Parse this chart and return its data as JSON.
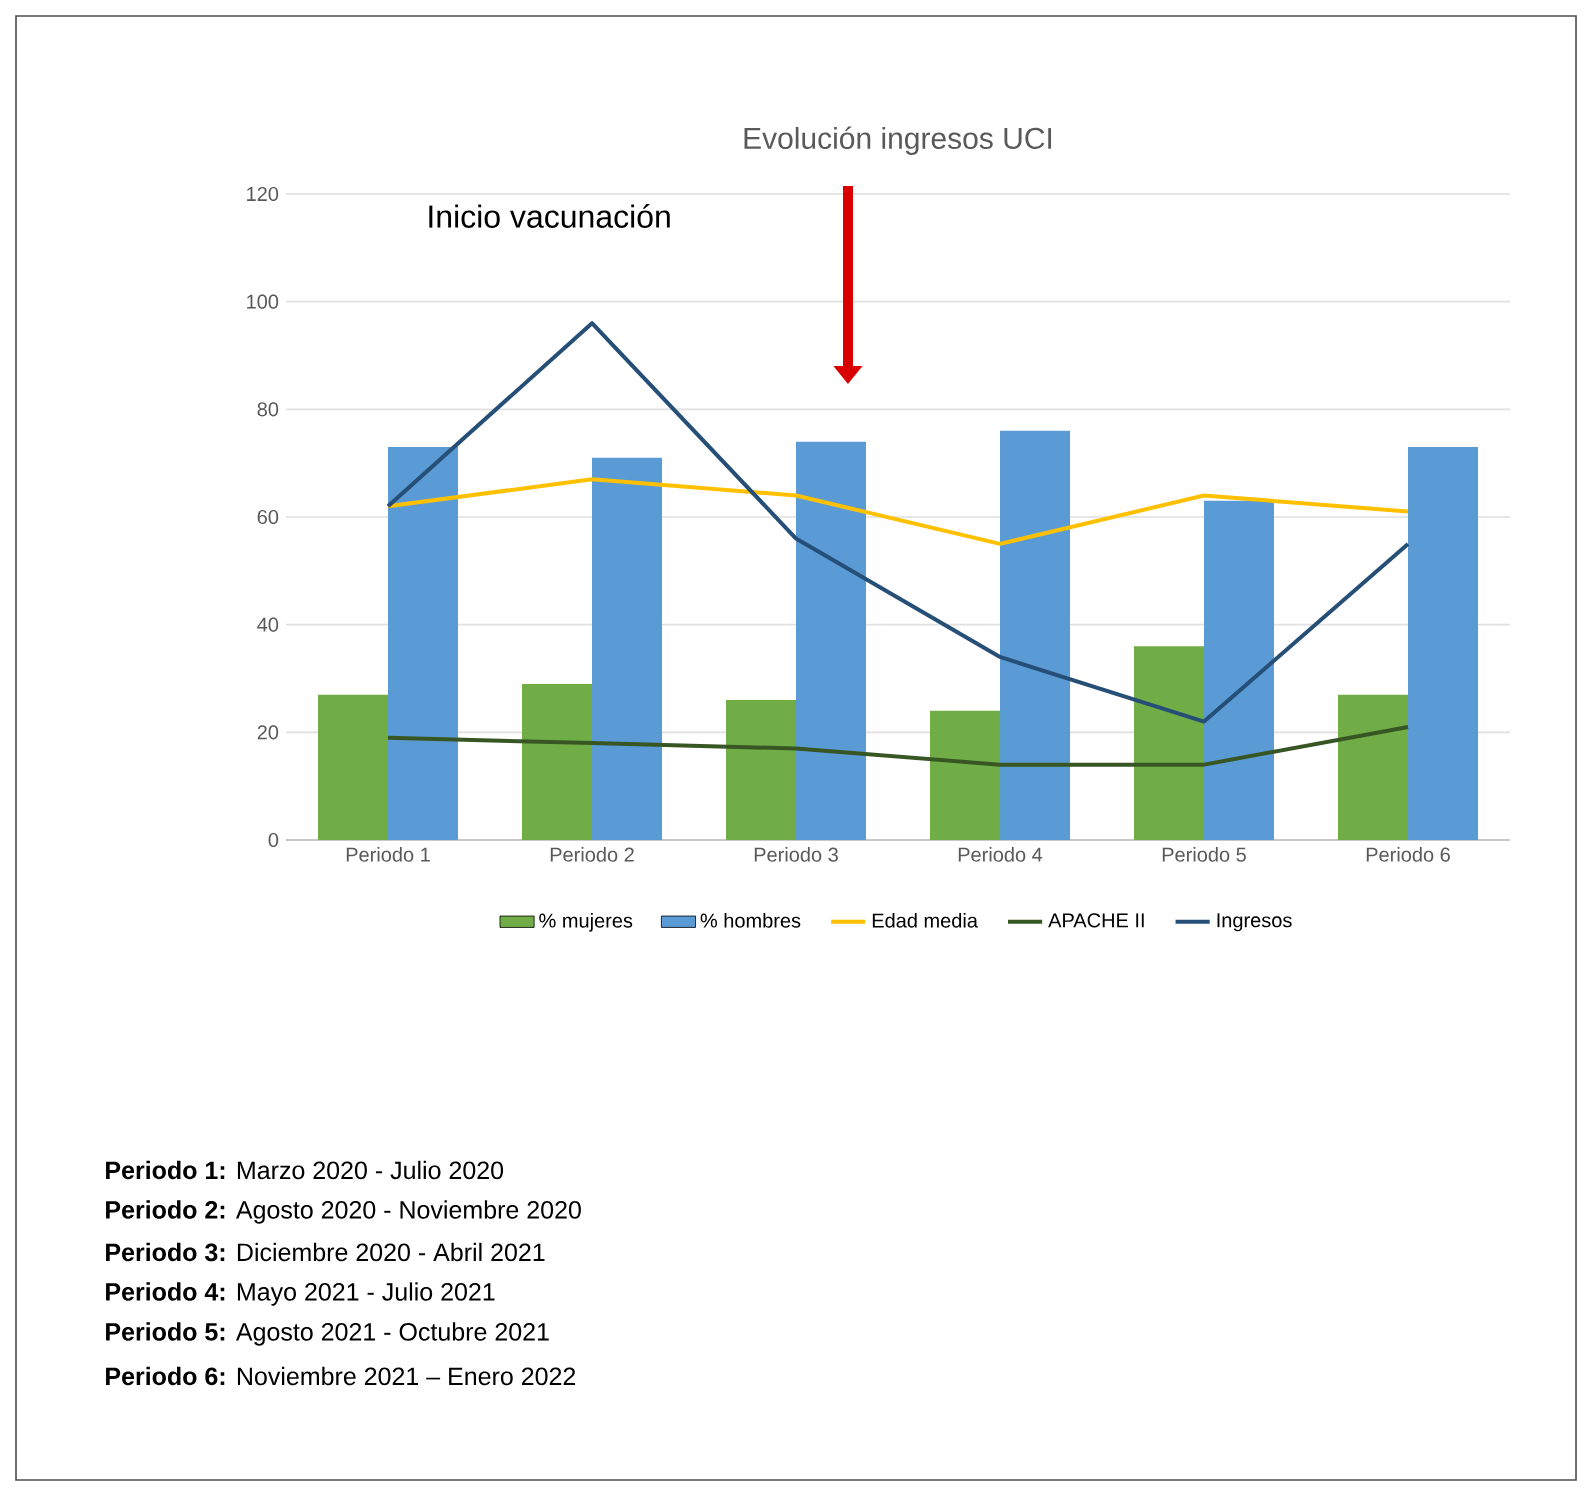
{
  "chart_data": {
    "type": "bar",
    "title": "Evolución ingresos UCI",
    "categories": [
      "Periodo 1",
      "Periodo 2",
      "Periodo 3",
      "Periodo 4",
      "Periodo 5",
      "Periodo 6"
    ],
    "series": [
      {
        "name": "% mujeres",
        "color": "#70ad47",
        "values": [
          27,
          29,
          26,
          24,
          36,
          27
        ]
      },
      {
        "name": "% hombres",
        "color": "#5b9bd5",
        "values": [
          73,
          71,
          74,
          76,
          63,
          73
        ]
      },
      {
        "name": "Edad media",
        "type": "line",
        "color": "#ffc000",
        "values": [
          62,
          67,
          64,
          55,
          64,
          61
        ]
      },
      {
        "name": "APACHE II",
        "type": "line",
        "color": "#375623",
        "values": [
          19,
          18,
          17,
          14,
          14,
          21
        ]
      },
      {
        "name": "Ingresos",
        "type": "line",
        "color": "#264f78",
        "values": [
          62,
          96,
          56,
          34,
          22,
          55
        ]
      }
    ],
    "ylim": [
      0,
      120
    ],
    "yticks": [
      0,
      20,
      40,
      60,
      80,
      100,
      120
    ],
    "grid": "y",
    "legend": "bottom",
    "annotations": [
      "Inicio vacunación",
      "**Periodo 1:** Marzo 2020 - Julio 2020",
      "**Periodo 2:** Agosto 2020 - Noviembre 2020",
      "**Periodo 3:** Diciembre 2020 - Abril 2021",
      "**Periodo 4:** Mayo 2021 - Julio 2021",
      "**Periodo 5:** Agosto 2021 - Octubre 2021",
      "**Periodo 6:** Noviembre 2021 – Enero 2022"
    ]
  }
}
